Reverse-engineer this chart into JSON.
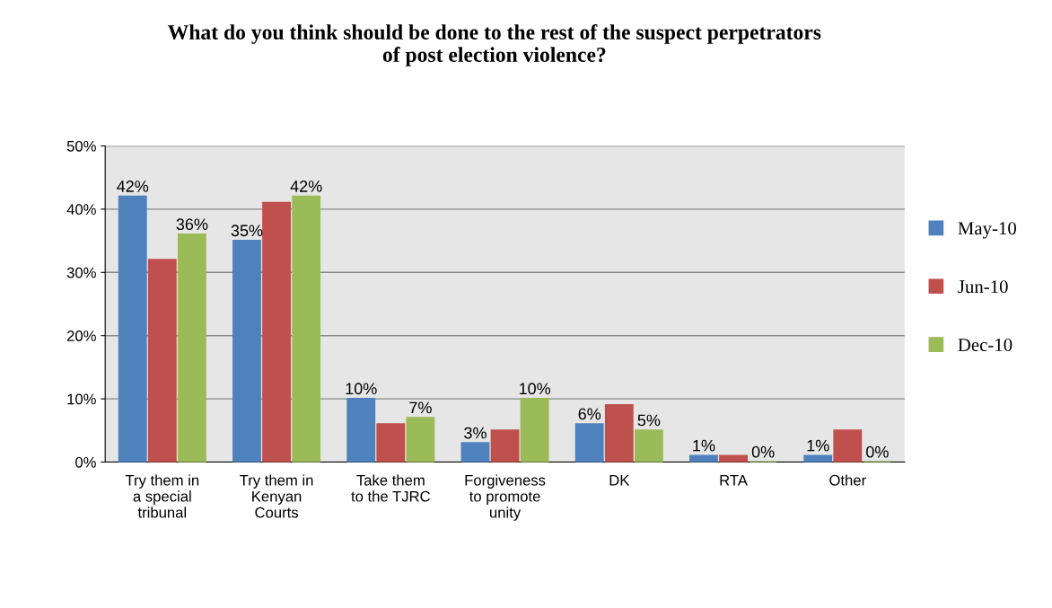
{
  "chart_data": {
    "type": "bar",
    "title": "What do you think should be done to the rest of the suspect perpetrators\nof post election violence?",
    "categories": [
      "Try them in\na special\ntribunal",
      "Try them in\nKenyan\nCourts",
      "Take them\nto the TJRC",
      "Forgiveness\nto promote\nunity",
      "DK",
      "RTA",
      "Other"
    ],
    "series": [
      {
        "name": "May-10",
        "color": "#4f81bd",
        "values": [
          42,
          35,
          10,
          3,
          6,
          1,
          1
        ],
        "value_labels": [
          "42%",
          "35%",
          "10%",
          "3%",
          "6%",
          "1%",
          "1%"
        ]
      },
      {
        "name": "Jun-10",
        "color": "#c0504d",
        "values": [
          32,
          41,
          6,
          5,
          9,
          1,
          5
        ]
      },
      {
        "name": "Dec-10",
        "color": "#9bbb59",
        "values": [
          36,
          42,
          7,
          10,
          5,
          0,
          0
        ],
        "value_labels": [
          "36%",
          "42%",
          "7%",
          "10%",
          "5%",
          "0%",
          "0%"
        ]
      }
    ],
    "ylim": [
      0,
      50
    ],
    "yticks": [
      {
        "value": 0,
        "label": "0%"
      },
      {
        "value": 10,
        "label": "10%"
      },
      {
        "value": 20,
        "label": "20%"
      },
      {
        "value": 30,
        "label": "30%"
      },
      {
        "value": 40,
        "label": "40%"
      },
      {
        "value": 50,
        "label": "50%"
      }
    ],
    "grid": "y",
    "legend": "right"
  }
}
